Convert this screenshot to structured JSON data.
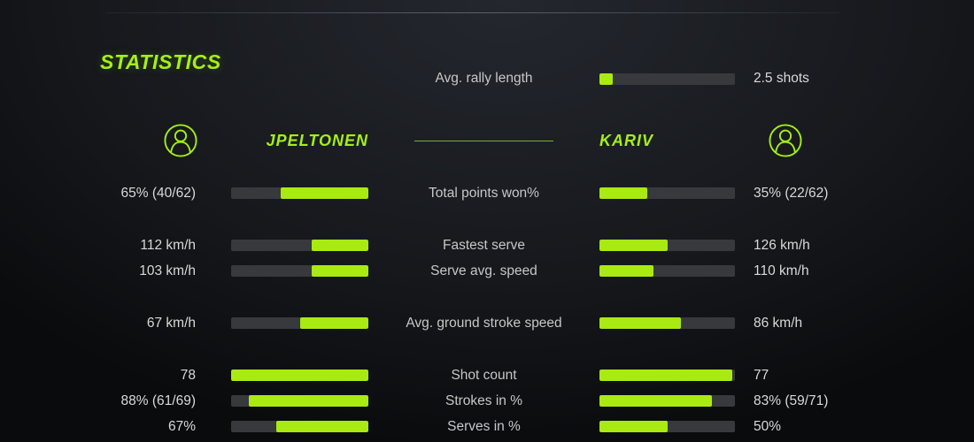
{
  "title": "STATISTICS",
  "colors": {
    "accent": "#a4f015",
    "bar_fill": "#a9ea12",
    "bar_track": "#37393d",
    "value_text": "#d9d9d9",
    "label_text": "#c7c7c7"
  },
  "rally": {
    "label": "Avg. rally length",
    "value": "2.5 shots",
    "bar_pct": 10
  },
  "players": {
    "left": {
      "name": "JPELTONEN",
      "icon": "user-circle-icon"
    },
    "right": {
      "name": "KARIV",
      "icon": "user-circle-icon"
    }
  },
  "chart_data": {
    "type": "bar",
    "title": "STATISTICS",
    "categories": [
      "Total points won%",
      "Fastest serve",
      "Serve avg. speed",
      "Avg. ground stroke speed",
      "Shot count",
      "Strokes in %",
      "Serves in %"
    ],
    "series": [
      {
        "name": "JPELTONEN",
        "values": [
          "65% (40/62)",
          "112 km/h",
          "103 km/h",
          "67 km/h",
          "78",
          "88% (61/69)",
          "67%"
        ]
      },
      {
        "name": "KARIV",
        "values": [
          "35% (22/62)",
          "126 km/h",
          "110 km/h",
          "86 km/h",
          "77",
          "83% (59/71)",
          "50%"
        ]
      }
    ]
  },
  "stats_rows": [
    {
      "label": "Total points won%",
      "left_value": "65% (40/62)",
      "right_value": "35% (22/62)",
      "left_pct": 64,
      "right_pct": 35
    },
    {
      "label": "Fastest serve",
      "left_value": "112 km/h",
      "right_value": "126 km/h",
      "left_pct": 41,
      "right_pct": 50
    },
    {
      "label": "Serve avg. speed",
      "left_value": "103 km/h",
      "right_value": "110 km/h",
      "left_pct": 41,
      "right_pct": 40
    },
    {
      "label": "Avg. ground stroke speed",
      "left_value": "67 km/h",
      "right_value": "86 km/h",
      "left_pct": 50,
      "right_pct": 60
    },
    {
      "label": "Shot count",
      "left_value": "78",
      "right_value": "77",
      "left_pct": 100,
      "right_pct": 98
    },
    {
      "label": "Strokes in %",
      "left_value": "88% (61/69)",
      "right_value": "83% (59/71)",
      "left_pct": 87,
      "right_pct": 83
    },
    {
      "label": "Serves in %",
      "left_value": "67%",
      "right_value": "50%",
      "left_pct": 67,
      "right_pct": 50
    }
  ]
}
